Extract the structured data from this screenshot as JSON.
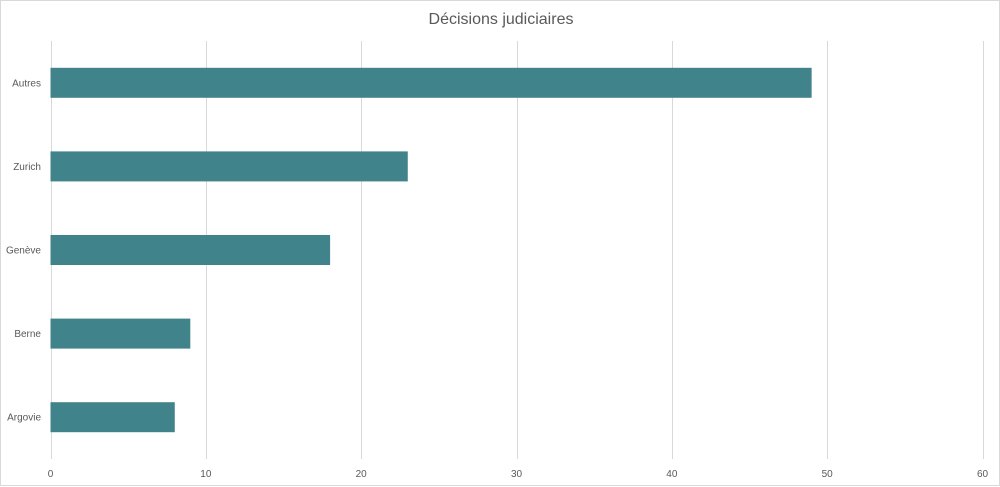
{
  "chart_data": {
    "type": "bar",
    "orientation": "horizontal",
    "title": "Décisions judiciaires",
    "categories": [
      "Autres",
      "Zurich",
      "Genève",
      "Berne",
      "Argovie"
    ],
    "values": [
      49,
      23,
      18,
      9,
      8
    ],
    "xlim": [
      0,
      60
    ],
    "xticks": [
      0,
      10,
      20,
      30,
      40,
      50,
      60
    ],
    "xlabel": "",
    "ylabel": "",
    "grid": "vertical",
    "legend": "none",
    "colors": {
      "bar": "#41838b",
      "grid": "#d9d9d9",
      "text": "#595959"
    }
  }
}
